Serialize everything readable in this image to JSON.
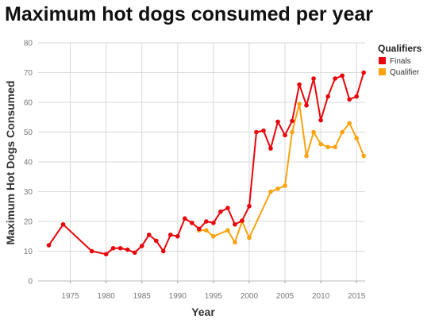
{
  "chart_data": {
    "type": "line",
    "title": "Maximum hot dogs consumed per year",
    "xlabel": "Year",
    "ylabel": "Maximum Hot Dogs Consumed",
    "xlim": [
      1970.5,
      2016.2
    ],
    "ylim": [
      0,
      80
    ],
    "xticks": [
      1975,
      1980,
      1985,
      1990,
      1995,
      2000,
      2005,
      2010,
      2015
    ],
    "yticks": [
      0,
      10,
      20,
      30,
      40,
      50,
      60,
      70,
      80
    ],
    "grid": true,
    "legend": {
      "title": "Qualifiers",
      "position": "right"
    },
    "series": [
      {
        "name": "Finals",
        "color": "#e8060c",
        "x": [
          1972,
          1974,
          1978,
          1980,
          1981,
          1982,
          1983,
          1984,
          1985,
          1986,
          1987,
          1988,
          1989,
          1990,
          1991,
          1992,
          1993,
          1994,
          1995,
          1996,
          1997,
          1998,
          1999,
          2000,
          2001,
          2002,
          2003,
          2004,
          2005,
          2006,
          2007,
          2008,
          2009,
          2010,
          2011,
          2012,
          2013,
          2014,
          2015,
          2016
        ],
        "values": [
          12,
          19,
          10,
          9,
          11,
          11,
          10.5,
          9.5,
          11.75,
          15.5,
          13.5,
          10,
          15.5,
          15,
          21,
          19.5,
          17.5,
          20,
          19.5,
          23.25,
          24.5,
          19,
          20.25,
          25.125,
          50,
          50.5,
          44.5,
          53.5,
          49,
          53.75,
          66,
          59,
          68,
          54,
          62,
          68,
          69,
          61,
          62,
          70
        ]
      },
      {
        "name": "Qualifier",
        "color": "#f9a30e",
        "x": [
          1993,
          1994,
          1995,
          1997,
          1998,
          1999,
          2000,
          2003,
          2004,
          2005,
          2006,
          2007,
          2008,
          2009,
          2010,
          2011,
          2012,
          2013,
          2014,
          2015,
          2016
        ],
        "values": [
          17,
          17,
          15,
          17,
          13,
          20,
          14.5,
          30,
          31,
          32,
          50,
          59.5,
          42,
          50,
          46,
          45,
          45,
          50,
          53,
          48,
          42
        ]
      }
    ]
  }
}
